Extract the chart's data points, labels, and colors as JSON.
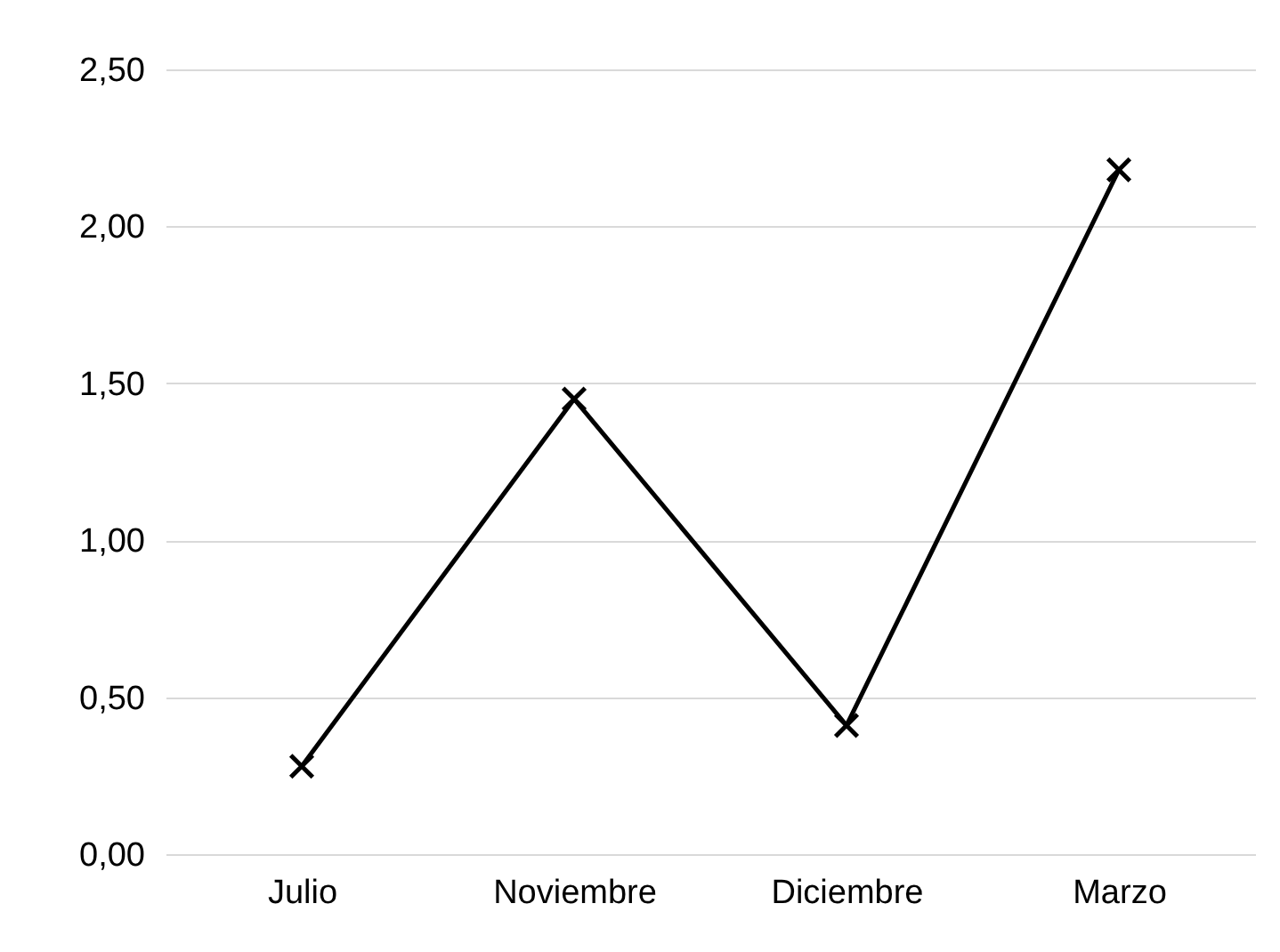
{
  "chart_data": {
    "type": "line",
    "categories": [
      "Julio",
      "Noviembre",
      "Diciembre",
      "Marzo"
    ],
    "series": [
      {
        "color": "#000000",
        "values": [
          0.28,
          1.45,
          0.41,
          2.18
        ]
      }
    ],
    "ylim": [
      0,
      2.5
    ],
    "yticks": [
      {
        "value": 0,
        "label": "0,00"
      },
      {
        "value": 0.5,
        "label": "0,50"
      },
      {
        "value": 1,
        "label": "1,00"
      },
      {
        "value": 1.5,
        "label": "1,50"
      },
      {
        "value": 2,
        "label": "2,00"
      },
      {
        "value": 2.5,
        "label": "2,50"
      }
    ],
    "grid": "y",
    "marker": "cross",
    "line_style": "solid"
  }
}
